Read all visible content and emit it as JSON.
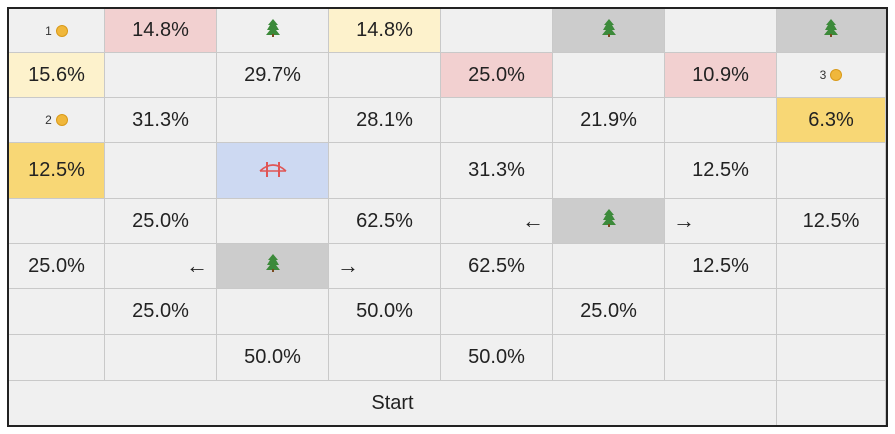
{
  "colors": {
    "default": "#f0f0f0",
    "light_yellow": "#fdf2cc",
    "light_red": "#f2d0d0",
    "gold": "#f8d775",
    "gray": "#cccccc",
    "blue": "#cdd9f2"
  },
  "rows": [
    [
      {
        "type": "coin",
        "label": "1"
      },
      {
        "type": "pct",
        "text": "14.8%",
        "bg": "light_red"
      },
      {
        "type": "tree",
        "icon": "tree-icon"
      },
      {
        "type": "pct",
        "text": "14.8%",
        "bg": "light_yellow"
      },
      {
        "type": "empty"
      },
      {
        "type": "tree",
        "icon": "tree-icon",
        "bg": "gray"
      },
      {
        "type": "empty"
      },
      {
        "type": "tree",
        "icon": "tree-icon",
        "bg": "gray"
      }
    ],
    [
      {
        "type": "pct",
        "text": "15.6%",
        "bg": "light_yellow"
      },
      {
        "type": "empty"
      },
      {
        "type": "pct",
        "text": "29.7%"
      },
      {
        "type": "empty"
      },
      {
        "type": "pct",
        "text": "25.0%",
        "bg": "light_red"
      },
      {
        "type": "empty"
      },
      {
        "type": "pct",
        "text": "10.9%",
        "bg": "light_red"
      },
      {
        "type": "coin",
        "label": "3"
      }
    ],
    [
      {
        "type": "coin",
        "label": "2"
      },
      {
        "type": "pct",
        "text": "31.3%"
      },
      {
        "type": "empty"
      },
      {
        "type": "pct",
        "text": "28.1%"
      },
      {
        "type": "empty"
      },
      {
        "type": "pct",
        "text": "21.9%"
      },
      {
        "type": "empty"
      },
      {
        "type": "pct",
        "text": "6.3%",
        "bg": "gold"
      }
    ],
    [
      {
        "type": "pct",
        "text": "12.5%",
        "bg": "gold"
      },
      {
        "type": "empty"
      },
      {
        "type": "bridge",
        "icon": "bridge-icon",
        "bg": "blue"
      },
      {
        "type": "empty"
      },
      {
        "type": "pct",
        "text": "31.3%"
      },
      {
        "type": "empty"
      },
      {
        "type": "pct",
        "text": "12.5%"
      },
      {
        "type": "empty"
      }
    ],
    [
      {
        "type": "empty"
      },
      {
        "type": "pct",
        "text": "25.0%"
      },
      {
        "type": "empty"
      },
      {
        "type": "pct",
        "text": "62.5%"
      },
      {
        "type": "left-arrow",
        "text": "←"
      },
      {
        "type": "tree",
        "icon": "tree-icon",
        "bg": "gray"
      },
      {
        "type": "right-arrow",
        "text": "→"
      },
      {
        "type": "pct",
        "text": "12.5%"
      }
    ],
    [
      {
        "type": "pct",
        "text": "25.0%"
      },
      {
        "type": "left-arrow",
        "text": "←"
      },
      {
        "type": "tree",
        "icon": "tree-icon",
        "bg": "gray"
      },
      {
        "type": "right-arrow",
        "text": "→"
      },
      {
        "type": "pct",
        "text": "62.5%"
      },
      {
        "type": "empty"
      },
      {
        "type": "pct",
        "text": "12.5%"
      },
      {
        "type": "empty"
      }
    ],
    [
      {
        "type": "empty"
      },
      {
        "type": "pct",
        "text": "25.0%"
      },
      {
        "type": "empty"
      },
      {
        "type": "pct",
        "text": "50.0%"
      },
      {
        "type": "empty"
      },
      {
        "type": "pct",
        "text": "25.0%"
      },
      {
        "type": "empty"
      },
      {
        "type": "empty"
      }
    ],
    [
      {
        "type": "empty"
      },
      {
        "type": "empty"
      },
      {
        "type": "pct",
        "text": "50.0%"
      },
      {
        "type": "empty"
      },
      {
        "type": "pct",
        "text": "50.0%"
      },
      {
        "type": "empty"
      },
      {
        "type": "empty"
      },
      {
        "type": "empty"
      }
    ]
  ],
  "start_row": {
    "label": "Start"
  }
}
